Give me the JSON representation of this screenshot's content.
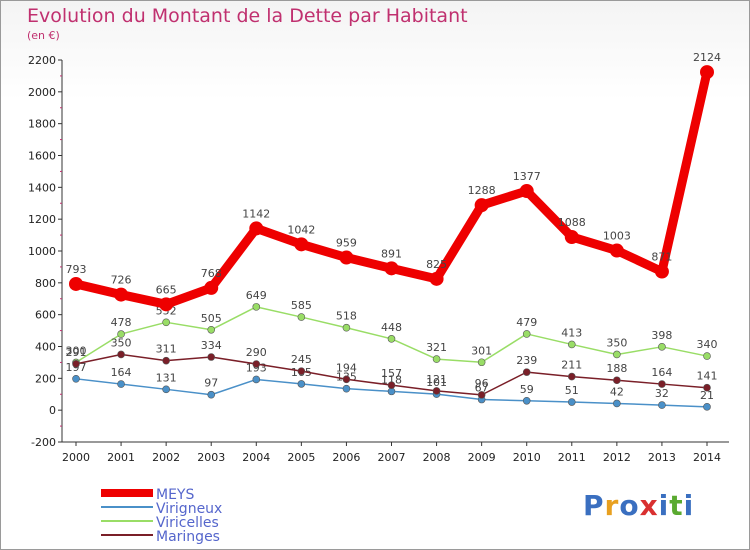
{
  "header": {
    "title": "Evolution du Montant de la Dette par Habitant",
    "subtitle": "(en €)"
  },
  "logo": {
    "text": "Proxiti"
  },
  "chart_data": {
    "type": "line",
    "title": "Evolution du Montant de la Dette par Habitant",
    "subtitle": "(en €)",
    "xlabel": "",
    "ylabel": "",
    "x": [
      "2000",
      "2001",
      "2002",
      "2003",
      "2004",
      "2005",
      "2006",
      "2007",
      "2008",
      "2009",
      "2010",
      "2011",
      "2012",
      "2013",
      "2014"
    ],
    "ylim": [
      -200,
      2200
    ],
    "yticks": [
      -200,
      0,
      200,
      400,
      600,
      800,
      1000,
      1200,
      1400,
      1600,
      1800,
      2000,
      2200
    ],
    "grid": false,
    "legend_position": "bottom-left",
    "series": [
      {
        "name": "Virigneux",
        "color": "#4a90c8",
        "values": [
          197,
          164,
          131,
          97,
          193,
          165,
          135,
          118,
          101,
          67,
          59,
          51,
          42,
          32,
          21
        ]
      },
      {
        "name": "Viricelles",
        "color": "#99dd66",
        "values": [
          300,
          478,
          552,
          505,
          649,
          585,
          518,
          448,
          321,
          301,
          479,
          413,
          350,
          398,
          340
        ]
      },
      {
        "name": "Maringes",
        "color": "#7a1f28",
        "values": [
          291,
          350,
          311,
          334,
          290,
          245,
          194,
          157,
          121,
          96,
          239,
          211,
          188,
          164,
          141
        ]
      },
      {
        "name": "MEYS",
        "color": "#ee0000",
        "values": [
          793,
          726,
          665,
          768,
          1142,
          1042,
          959,
          891,
          825,
          1288,
          1377,
          1088,
          1003,
          871,
          2124
        ]
      }
    ],
    "legend_order": [
      "MEYS",
      "Virigneux",
      "Viricelles",
      "Maringes"
    ]
  }
}
